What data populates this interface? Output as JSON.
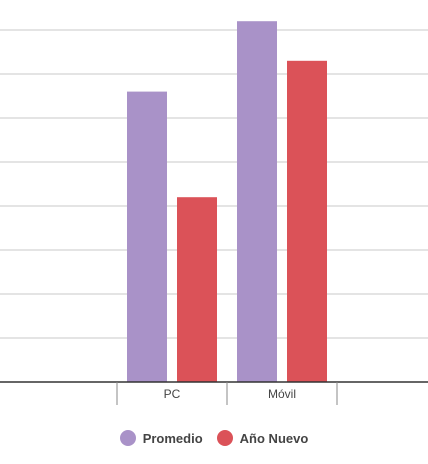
{
  "chart_data": {
    "type": "bar",
    "categories": [
      "PC",
      "Móvil"
    ],
    "series": [
      {
        "name": "Promedio",
        "values": [
          66,
          82
        ],
        "color": "#a992c8"
      },
      {
        "name": "Año Nuevo",
        "values": [
          42,
          73
        ],
        "color": "#db5258"
      }
    ],
    "ylim": [
      0,
      80
    ],
    "grid": true,
    "legend_position": "bottom-center"
  }
}
